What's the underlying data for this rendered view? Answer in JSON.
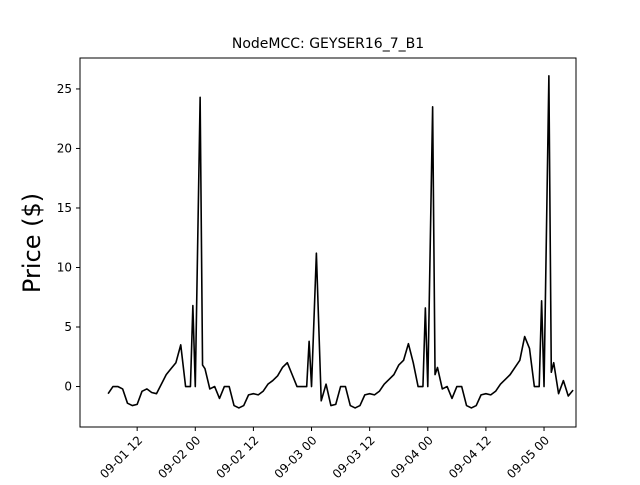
{
  "chart_data": {
    "type": "line",
    "title": "NodeMCC: GEYSER16_7_B1",
    "xlabel": "",
    "ylabel": "Price ($)",
    "xlim": [
      "2016-09-01 00:12",
      "2016-09-05 06:36"
    ],
    "ylim": [
      -3.4,
      27.6
    ],
    "grid": false,
    "line_color": "#000000",
    "x_ticks": [
      {
        "value": "2016-09-01 12:00",
        "label": "09-01 12"
      },
      {
        "value": "2016-09-02 00:00",
        "label": "09-02 00"
      },
      {
        "value": "2016-09-02 12:00",
        "label": "09-02 12"
      },
      {
        "value": "2016-09-03 00:00",
        "label": "09-03 00"
      },
      {
        "value": "2016-09-03 12:00",
        "label": "09-03 12"
      },
      {
        "value": "2016-09-04 00:00",
        "label": "09-04 00"
      },
      {
        "value": "2016-09-04 12:00",
        "label": "09-04 12"
      },
      {
        "value": "2016-09-05 00:00",
        "label": "09-05 00"
      }
    ],
    "y_ticks": [
      {
        "value": 0,
        "label": "0"
      },
      {
        "value": 5,
        "label": "5"
      },
      {
        "value": 10,
        "label": "10"
      },
      {
        "value": 15,
        "label": "15"
      },
      {
        "value": 20,
        "label": "20"
      },
      {
        "value": 25,
        "label": "25"
      }
    ],
    "series": [
      {
        "x": [
          "2016-09-01 06:00",
          "2016-09-01 07:00",
          "2016-09-01 08:00",
          "2016-09-01 09:00",
          "2016-09-01 10:00",
          "2016-09-01 11:00",
          "2016-09-01 12:00",
          "2016-09-01 13:00",
          "2016-09-01 14:00",
          "2016-09-01 15:00",
          "2016-09-01 16:00",
          "2016-09-01 17:00",
          "2016-09-01 18:00",
          "2016-09-01 19:00",
          "2016-09-01 20:00",
          "2016-09-01 21:00",
          "2016-09-01 22:00",
          "2016-09-01 23:00",
          "2016-09-01 23:30",
          "2016-09-02 00:00",
          "2016-09-02 01:00",
          "2016-09-02 01:30",
          "2016-09-02 02:00",
          "2016-09-02 03:00",
          "2016-09-02 04:00",
          "2016-09-02 05:00",
          "2016-09-02 06:00",
          "2016-09-02 07:00",
          "2016-09-02 08:00",
          "2016-09-02 09:00",
          "2016-09-02 10:00",
          "2016-09-02 11:00",
          "2016-09-02 12:00",
          "2016-09-02 13:00",
          "2016-09-02 14:00",
          "2016-09-02 15:00",
          "2016-09-02 16:00",
          "2016-09-02 17:00",
          "2016-09-02 18:00",
          "2016-09-02 19:00",
          "2016-09-02 20:00",
          "2016-09-02 21:00",
          "2016-09-02 22:00",
          "2016-09-02 23:00",
          "2016-09-02 23:30",
          "2016-09-03 00:00",
          "2016-09-03 01:00",
          "2016-09-03 02:00",
          "2016-09-03 03:00",
          "2016-09-03 04:00",
          "2016-09-03 05:00",
          "2016-09-03 06:00",
          "2016-09-03 07:00",
          "2016-09-03 08:00",
          "2016-09-03 09:00",
          "2016-09-03 10:00",
          "2016-09-03 11:00",
          "2016-09-03 12:00",
          "2016-09-03 13:00",
          "2016-09-03 14:00",
          "2016-09-03 15:00",
          "2016-09-03 16:00",
          "2016-09-03 17:00",
          "2016-09-03 18:00",
          "2016-09-03 19:00",
          "2016-09-03 20:00",
          "2016-09-03 21:00",
          "2016-09-03 22:00",
          "2016-09-03 23:00",
          "2016-09-03 23:30",
          "2016-09-04 00:00",
          "2016-09-04 01:00",
          "2016-09-04 01:30",
          "2016-09-04 02:00",
          "2016-09-04 03:00",
          "2016-09-04 04:00",
          "2016-09-04 05:00",
          "2016-09-04 06:00",
          "2016-09-04 07:00",
          "2016-09-04 08:00",
          "2016-09-04 09:00",
          "2016-09-04 10:00",
          "2016-09-04 11:00",
          "2016-09-04 12:00",
          "2016-09-04 13:00",
          "2016-09-04 14:00",
          "2016-09-04 15:00",
          "2016-09-04 16:00",
          "2016-09-04 17:00",
          "2016-09-04 18:00",
          "2016-09-04 19:00",
          "2016-09-04 20:00",
          "2016-09-04 21:00",
          "2016-09-04 22:00",
          "2016-09-04 23:00",
          "2016-09-04 23:30",
          "2016-09-05 00:00",
          "2016-09-05 01:00",
          "2016-09-05 01:30",
          "2016-09-05 02:00",
          "2016-09-05 03:00",
          "2016-09-05 04:00",
          "2016-09-05 05:00",
          "2016-09-05 06:00"
        ],
        "y": [
          -0.6,
          0.0,
          0.0,
          -0.2,
          -1.4,
          -1.6,
          -1.5,
          -0.4,
          -0.2,
          -0.5,
          -0.6,
          0.2,
          1.0,
          1.5,
          2.0,
          3.5,
          0.0,
          0.0,
          6.8,
          0.0,
          24.3,
          1.8,
          1.5,
          -0.2,
          0.0,
          -1.0,
          0.0,
          0.0,
          -1.6,
          -1.8,
          -1.6,
          -0.7,
          -0.6,
          -0.7,
          -0.4,
          0.2,
          0.5,
          0.9,
          1.6,
          2.0,
          1.0,
          0.0,
          0.0,
          0.0,
          3.8,
          0.0,
          11.2,
          -1.2,
          0.2,
          -1.6,
          -1.5,
          0.0,
          0.0,
          -1.6,
          -1.8,
          -1.6,
          -0.7,
          -0.6,
          -0.7,
          -0.4,
          0.2,
          0.6,
          1.0,
          1.8,
          2.2,
          3.6,
          2.0,
          0.0,
          0.0,
          6.6,
          0.0,
          23.5,
          1.0,
          1.6,
          -0.2,
          0.0,
          -1.0,
          0.0,
          0.0,
          -1.6,
          -1.8,
          -1.6,
          -0.7,
          -0.6,
          -0.7,
          -0.4,
          0.2,
          0.6,
          1.0,
          1.6,
          2.2,
          4.2,
          3.2,
          0.0,
          0.0,
          7.2,
          0.0,
          26.1,
          1.2,
          2.0,
          -0.6,
          0.5,
          -0.8,
          -0.3
        ]
      }
    ]
  }
}
